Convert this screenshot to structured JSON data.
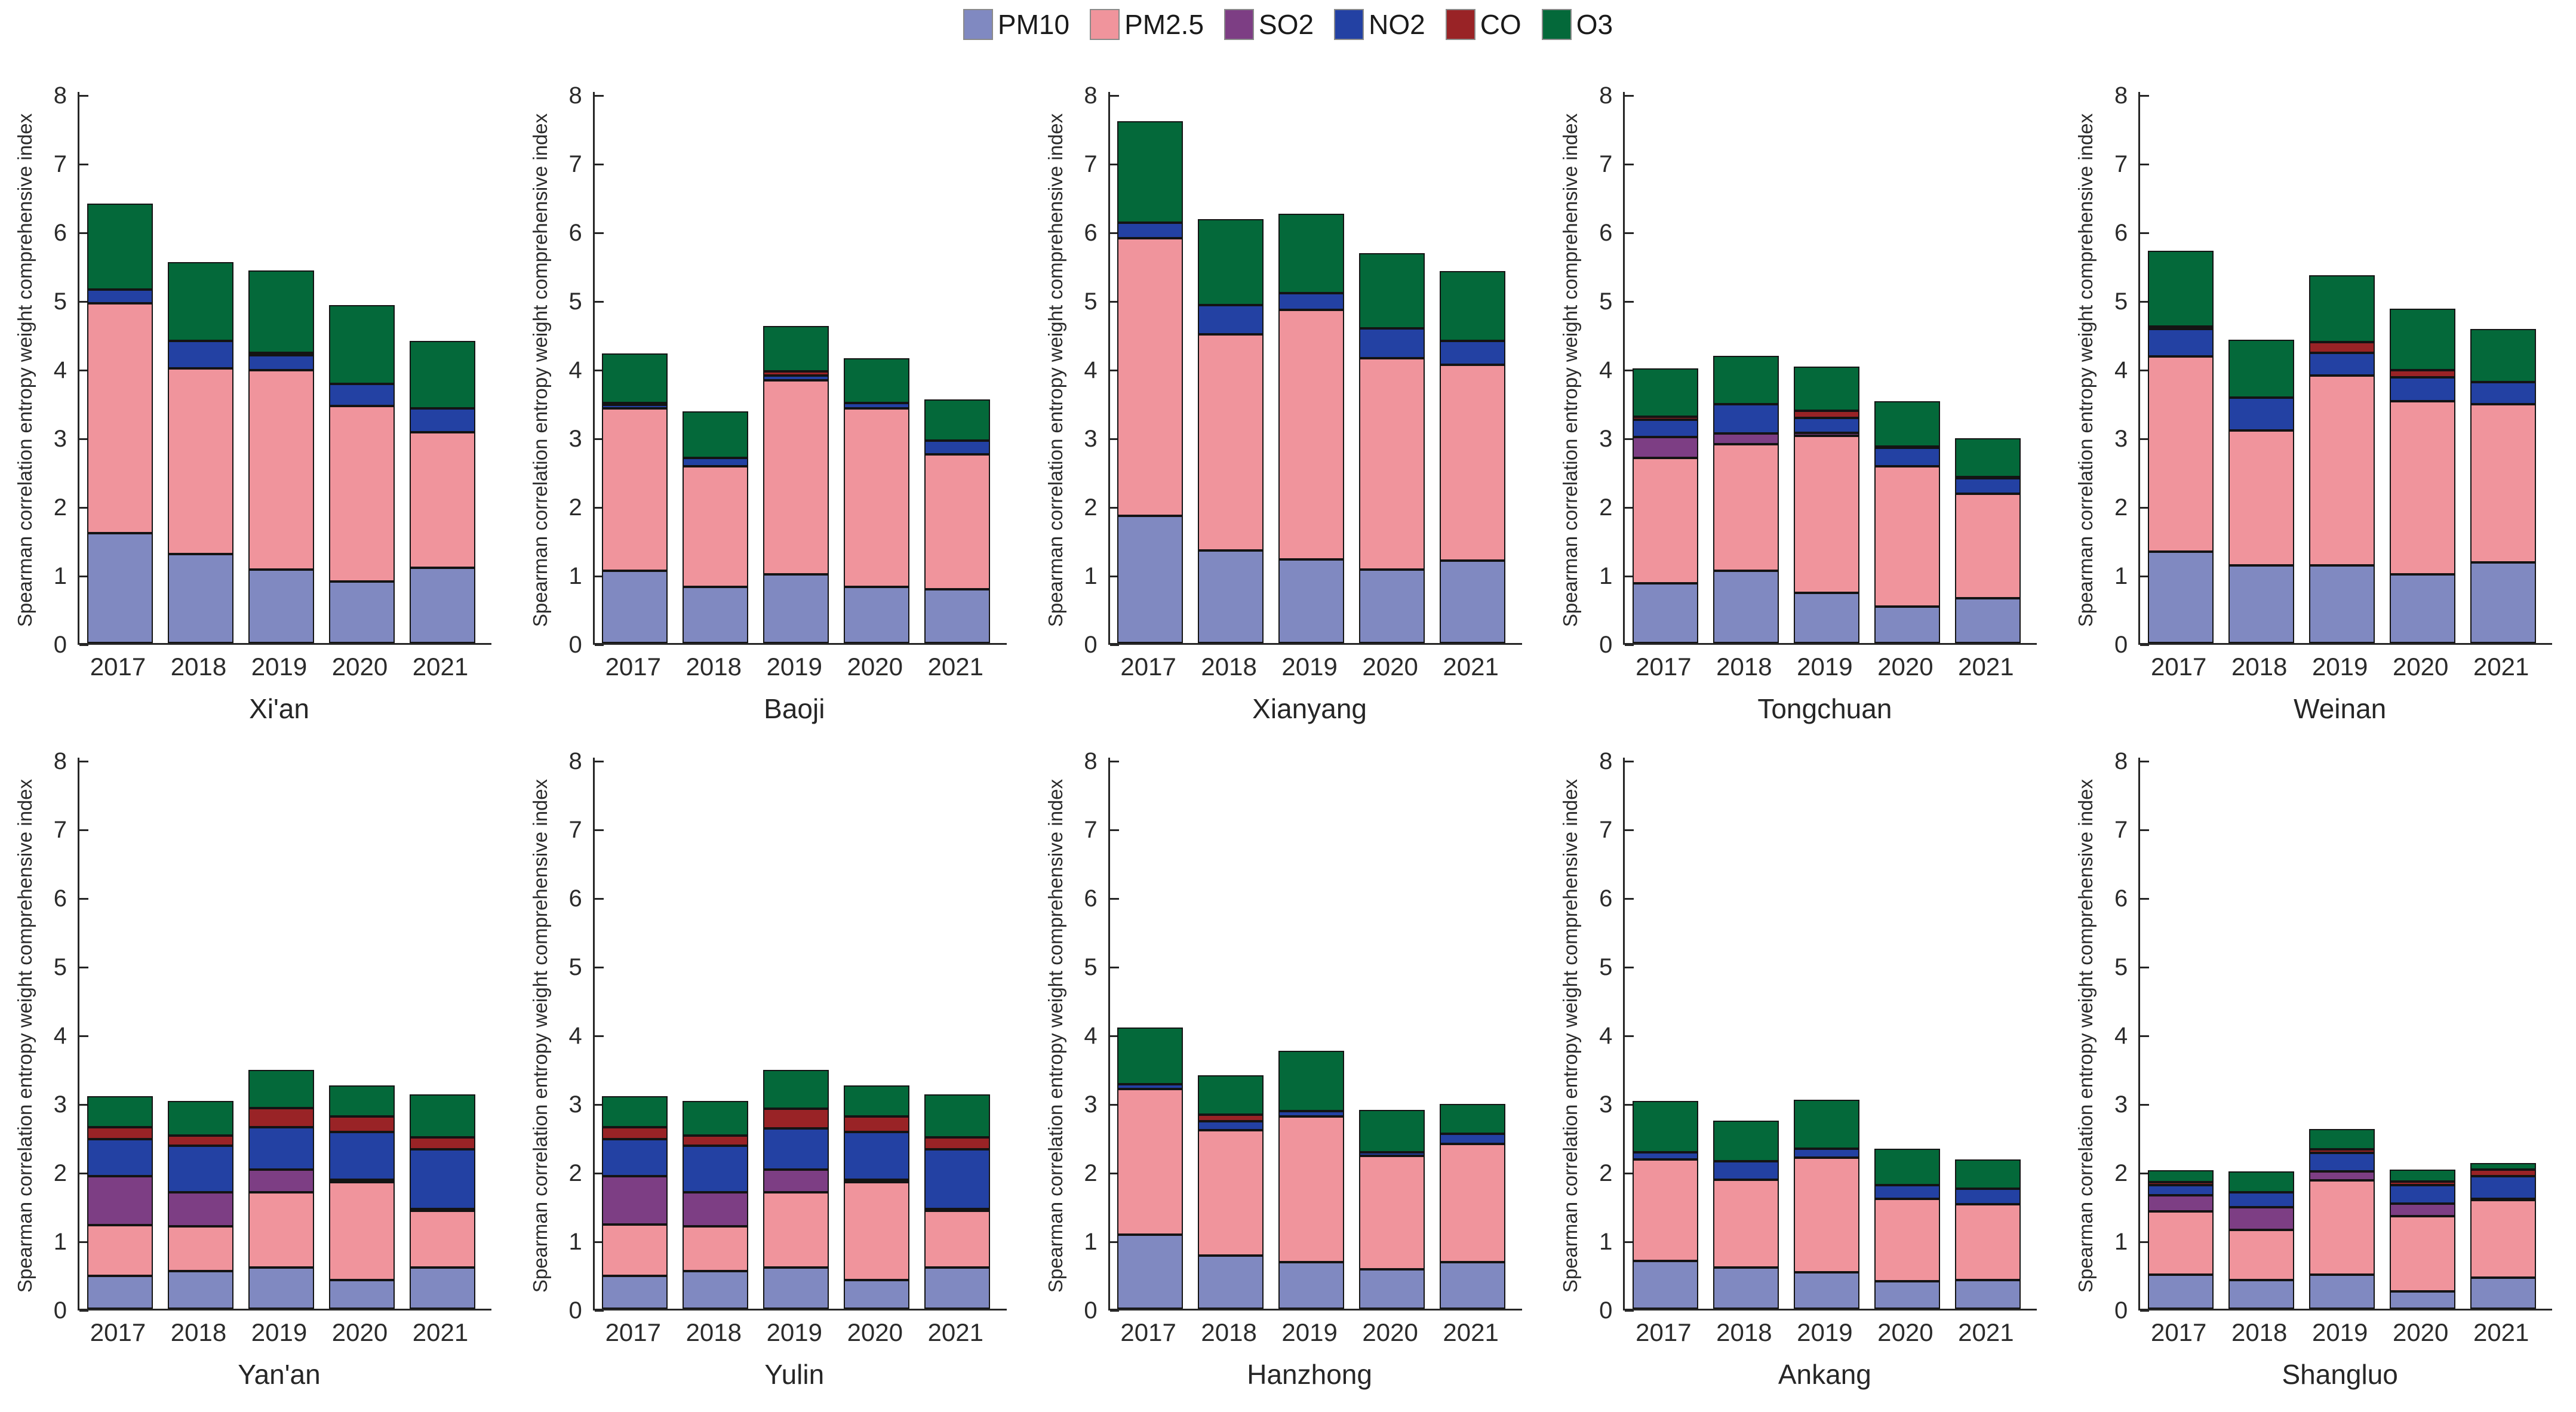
{
  "figure": {
    "ylabel": "Spearman correlation entropy weight comprehensive index",
    "years": [
      "2017",
      "2018",
      "2019",
      "2020",
      "2021"
    ],
    "yticks": [
      0,
      1,
      2,
      3,
      4,
      5,
      6,
      7,
      8
    ],
    "ylim": [
      0,
      8
    ],
    "axis_color": "#262626",
    "bar_edge_color": "#141414"
  },
  "legend": {
    "items": [
      {
        "label": "PM10",
        "color": "#8089c1"
      },
      {
        "label": "PM2.5",
        "color": "#f0949c"
      },
      {
        "label": "SO2",
        "color": "#7d3e84"
      },
      {
        "label": "NO2",
        "color": "#2341a3"
      },
      {
        "label": "CO",
        "color": "#992326"
      },
      {
        "label": "O3",
        "color": "#04693a"
      }
    ]
  },
  "chart_data": [
    {
      "type": "bar",
      "stacked": true,
      "city": "Xi'an",
      "categories": [
        "2017",
        "2018",
        "2019",
        "2020",
        "2021"
      ],
      "ylabel": "Spearman correlation entropy weight comprehensive index",
      "ylim": [
        0,
        8
      ],
      "grid": false,
      "series": [
        {
          "name": "PM10",
          "values": [
            1.6,
            1.3,
            1.07,
            0.9,
            1.1
          ]
        },
        {
          "name": "PM2.5",
          "values": [
            3.35,
            2.7,
            2.9,
            2.55,
            1.97
          ]
        },
        {
          "name": "SO2",
          "values": [
            0,
            0,
            0,
            0,
            0
          ]
        },
        {
          "name": "NO2",
          "values": [
            0.2,
            0.4,
            0.22,
            0.32,
            0.35
          ]
        },
        {
          "name": "CO",
          "values": [
            0,
            0,
            0.04,
            0,
            0
          ]
        },
        {
          "name": "O3",
          "values": [
            1.25,
            1.15,
            1.2,
            1.15,
            0.98
          ]
        }
      ]
    },
    {
      "type": "bar",
      "stacked": true,
      "city": "Baoji",
      "categories": [
        "2017",
        "2018",
        "2019",
        "2020",
        "2021"
      ],
      "ylabel": "Spearman correlation entropy weight comprehensive index",
      "ylim": [
        0,
        8
      ],
      "grid": false,
      "series": [
        {
          "name": "PM10",
          "values": [
            1.05,
            0.82,
            1.0,
            0.82,
            0.78
          ]
        },
        {
          "name": "PM2.5",
          "values": [
            2.37,
            1.75,
            2.83,
            2.6,
            1.97
          ]
        },
        {
          "name": "SO2",
          "values": [
            0,
            0,
            0,
            0,
            0
          ]
        },
        {
          "name": "NO2",
          "values": [
            0.05,
            0.13,
            0.07,
            0.08,
            0.2
          ]
        },
        {
          "name": "CO",
          "values": [
            0.03,
            0,
            0.06,
            0,
            0
          ]
        },
        {
          "name": "O3",
          "values": [
            0.72,
            0.67,
            0.66,
            0.65,
            0.6
          ]
        }
      ]
    },
    {
      "type": "bar",
      "stacked": true,
      "city": "Xianyang",
      "categories": [
        "2017",
        "2018",
        "2019",
        "2020",
        "2021"
      ],
      "ylabel": "Spearman correlation entropy weight comprehensive index",
      "ylim": [
        0,
        8
      ],
      "grid": false,
      "series": [
        {
          "name": "PM10",
          "values": [
            1.85,
            1.35,
            1.22,
            1.07,
            1.2
          ]
        },
        {
          "name": "PM2.5",
          "values": [
            4.05,
            3.15,
            3.63,
            3.08,
            2.85
          ]
        },
        {
          "name": "SO2",
          "values": [
            0,
            0,
            0,
            0,
            0
          ]
        },
        {
          "name": "NO2",
          "values": [
            0.22,
            0.42,
            0.25,
            0.43,
            0.35
          ]
        },
        {
          "name": "CO",
          "values": [
            0,
            0,
            0,
            0,
            0
          ]
        },
        {
          "name": "O3",
          "values": [
            1.48,
            1.25,
            1.15,
            1.1,
            1.02
          ]
        }
      ]
    },
    {
      "type": "bar",
      "stacked": true,
      "city": "Tongchuan",
      "categories": [
        "2017",
        "2018",
        "2019",
        "2020",
        "2021"
      ],
      "ylabel": "Spearman correlation entropy weight comprehensive index",
      "ylim": [
        0,
        8
      ],
      "grid": false,
      "series": [
        {
          "name": "PM10",
          "values": [
            0.87,
            1.05,
            0.73,
            0.53,
            0.65
          ]
        },
        {
          "name": "PM2.5",
          "values": [
            1.83,
            1.85,
            2.29,
            2.04,
            1.52
          ]
        },
        {
          "name": "SO2",
          "values": [
            0.3,
            0.15,
            0.04,
            0,
            0
          ]
        },
        {
          "name": "NO2",
          "values": [
            0.25,
            0.43,
            0.22,
            0.27,
            0.23
          ]
        },
        {
          "name": "CO",
          "values": [
            0.05,
            0,
            0.1,
            0.02,
            0.02
          ]
        },
        {
          "name": "O3",
          "values": [
            0.7,
            0.7,
            0.65,
            0.66,
            0.56
          ]
        }
      ]
    },
    {
      "type": "bar",
      "stacked": true,
      "city": "Weinan",
      "categories": [
        "2017",
        "2018",
        "2019",
        "2020",
        "2021"
      ],
      "ylabel": "Spearman correlation entropy weight comprehensive index",
      "ylim": [
        0,
        8
      ],
      "grid": false,
      "series": [
        {
          "name": "PM10",
          "values": [
            1.33,
            1.13,
            1.13,
            1.0,
            1.17
          ]
        },
        {
          "name": "PM2.5",
          "values": [
            2.84,
            1.97,
            2.77,
            2.52,
            2.31
          ]
        },
        {
          "name": "SO2",
          "values": [
            0,
            0,
            0,
            0,
            0
          ]
        },
        {
          "name": "NO2",
          "values": [
            0.4,
            0.47,
            0.33,
            0.35,
            0.32
          ]
        },
        {
          "name": "CO",
          "values": [
            0.04,
            0,
            0.15,
            0.1,
            0
          ]
        },
        {
          "name": "O3",
          "values": [
            1.1,
            0.85,
            0.98,
            0.9,
            0.77
          ]
        }
      ]
    },
    {
      "type": "bar",
      "stacked": true,
      "city": "Yan'an",
      "categories": [
        "2017",
        "2018",
        "2019",
        "2020",
        "2021"
      ],
      "ylabel": "Spearman correlation entropy weight comprehensive index",
      "ylim": [
        0,
        8
      ],
      "grid": false,
      "series": [
        {
          "name": "PM10",
          "values": [
            0.48,
            0.55,
            0.6,
            0.42,
            0.6
          ]
        },
        {
          "name": "PM2.5",
          "values": [
            0.74,
            0.65,
            1.1,
            1.42,
            0.83
          ]
        },
        {
          "name": "SO2",
          "values": [
            0.71,
            0.5,
            0.33,
            0.04,
            0.02
          ]
        },
        {
          "name": "NO2",
          "values": [
            0.54,
            0.67,
            0.61,
            0.69,
            0.87
          ]
        },
        {
          "name": "CO",
          "values": [
            0.17,
            0.15,
            0.28,
            0.23,
            0.18
          ]
        },
        {
          "name": "O3",
          "values": [
            0.46,
            0.51,
            0.56,
            0.45,
            0.62
          ]
        }
      ]
    },
    {
      "type": "bar",
      "stacked": true,
      "city": "Yulin",
      "categories": [
        "2017",
        "2018",
        "2019",
        "2020",
        "2021"
      ],
      "ylabel": "Spearman correlation entropy weight comprehensive index",
      "ylim": [
        0,
        8
      ],
      "grid": false,
      "series": [
        {
          "name": "PM10",
          "values": [
            0.48,
            0.55,
            0.6,
            0.42,
            0.6
          ]
        },
        {
          "name": "PM2.5",
          "values": [
            0.75,
            0.65,
            1.1,
            1.42,
            0.83
          ]
        },
        {
          "name": "SO2",
          "values": [
            0.7,
            0.5,
            0.33,
            0.04,
            0.02
          ]
        },
        {
          "name": "NO2",
          "values": [
            0.54,
            0.67,
            0.6,
            0.69,
            0.87
          ]
        },
        {
          "name": "CO",
          "values": [
            0.17,
            0.15,
            0.28,
            0.23,
            0.18
          ]
        },
        {
          "name": "O3",
          "values": [
            0.46,
            0.51,
            0.57,
            0.45,
            0.62
          ]
        }
      ]
    },
    {
      "type": "bar",
      "stacked": true,
      "city": "Hanzhong",
      "categories": [
        "2017",
        "2018",
        "2019",
        "2020",
        "2021"
      ],
      "ylabel": "Spearman correlation entropy weight comprehensive index",
      "ylim": [
        0,
        8
      ],
      "grid": false,
      "series": [
        {
          "name": "PM10",
          "values": [
            1.08,
            0.77,
            0.68,
            0.57,
            0.68
          ]
        },
        {
          "name": "PM2.5",
          "values": [
            2.12,
            1.83,
            2.12,
            1.66,
            1.72
          ]
        },
        {
          "name": "SO2",
          "values": [
            0,
            0,
            0,
            0,
            0
          ]
        },
        {
          "name": "NO2",
          "values": [
            0.07,
            0.13,
            0.08,
            0.05,
            0.15
          ]
        },
        {
          "name": "CO",
          "values": [
            0,
            0.1,
            0,
            0,
            0
          ]
        },
        {
          "name": "O3",
          "values": [
            0.83,
            0.57,
            0.88,
            0.62,
            0.43
          ]
        }
      ]
    },
    {
      "type": "bar",
      "stacked": true,
      "city": "Ankang",
      "categories": [
        "2017",
        "2018",
        "2019",
        "2020",
        "2021"
      ],
      "ylabel": "Spearman correlation entropy weight comprehensive index",
      "ylim": [
        0,
        8
      ],
      "grid": false,
      "series": [
        {
          "name": "PM10",
          "values": [
            0.7,
            0.6,
            0.53,
            0.4,
            0.42
          ]
        },
        {
          "name": "PM2.5",
          "values": [
            1.47,
            1.28,
            1.67,
            1.2,
            1.1
          ]
        },
        {
          "name": "SO2",
          "values": [
            0,
            0,
            0,
            0,
            0
          ]
        },
        {
          "name": "NO2",
          "values": [
            0.11,
            0.27,
            0.13,
            0.2,
            0.23
          ]
        },
        {
          "name": "CO",
          "values": [
            0,
            0,
            0,
            0,
            0
          ]
        },
        {
          "name": "O3",
          "values": [
            0.75,
            0.59,
            0.71,
            0.53,
            0.42
          ]
        }
      ]
    },
    {
      "type": "bar",
      "stacked": true,
      "city": "Shangluo",
      "categories": [
        "2017",
        "2018",
        "2019",
        "2020",
        "2021"
      ],
      "ylabel": "Spearman correlation entropy weight comprehensive index",
      "ylim": [
        0,
        8
      ],
      "grid": false,
      "series": [
        {
          "name": "PM10",
          "values": [
            0.5,
            0.42,
            0.5,
            0.25,
            0.45
          ]
        },
        {
          "name": "PM2.5",
          "values": [
            0.92,
            0.73,
            1.37,
            1.1,
            1.13
          ]
        },
        {
          "name": "SO2",
          "values": [
            0.23,
            0.33,
            0.13,
            0.18,
            0.02
          ]
        },
        {
          "name": "NO2",
          "values": [
            0.15,
            0.22,
            0.27,
            0.27,
            0.33
          ]
        },
        {
          "name": "CO",
          "values": [
            0.04,
            0,
            0.05,
            0.05,
            0.1
          ]
        },
        {
          "name": "O3",
          "values": [
            0.18,
            0.3,
            0.3,
            0.18,
            0.09
          ]
        }
      ]
    }
  ]
}
